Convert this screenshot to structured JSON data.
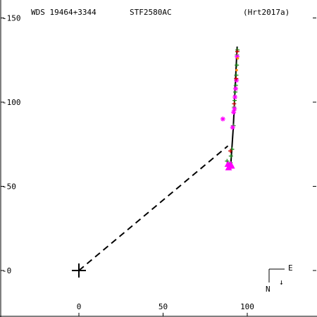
{
  "header": {
    "identifier": "WDS 19464+3344",
    "designation": "STF2580AC",
    "reference": "(Hrt2017a)"
  },
  "compass": {
    "east_label": "E",
    "north_label": "N",
    "north_arrow": "↓"
  },
  "colors": {
    "axes": "#000000",
    "orbit": "#000000",
    "measures_green": "#1a8a1a",
    "measures_magenta": "#ff00ff",
    "measures_red": "#cc0000",
    "measures_orange": "#ff8800"
  },
  "chart_data": {
    "type": "scatter",
    "title": "",
    "xlabel": "",
    "ylabel": "",
    "xlim": [
      -46,
      142
    ],
    "ylim": [
      -27,
      160
    ],
    "x_ticks": [
      0,
      50,
      100
    ],
    "x_tick_labels": [
      "0",
      "50",
      "100"
    ],
    "y_ticks": [
      0,
      50,
      100,
      150
    ],
    "y_tick_labels": [
      "0",
      "50",
      "100",
      "150"
    ],
    "grid": false,
    "origin_marker": [
      0,
      0
    ],
    "projection_line": [
      [
        0,
        0
      ],
      [
        88.5,
        74
      ]
    ],
    "trend_line": [
      [
        90,
        60
      ],
      [
        90.7,
        70
      ],
      [
        91.7,
        85
      ],
      [
        92.4,
        100
      ],
      [
        93.1,
        115
      ],
      [
        94,
        133
      ]
    ],
    "series": [
      {
        "marker": "plus",
        "color": "green",
        "points": [
          [
            88,
            65
          ],
          [
            90,
            64
          ],
          [
            90.3,
            68
          ],
          [
            91,
            72
          ],
          [
            91.8,
            86
          ],
          [
            92.2,
            97
          ],
          [
            92.5,
            101
          ],
          [
            92.9,
            106
          ],
          [
            93.2,
            110
          ],
          [
            93.5,
            116
          ],
          [
            93.8,
            122
          ],
          [
            93.9,
            128
          ],
          [
            94.2,
            131
          ]
        ]
      },
      {
        "marker": "asterisk",
        "color": "magenta",
        "points": [
          [
            85.5,
            90
          ],
          [
            91.3,
            85
          ],
          [
            91.9,
            94
          ],
          [
            92.4,
            96
          ],
          [
            92.7,
            103
          ],
          [
            93.1,
            108
          ],
          [
            93.6,
            113
          ],
          [
            94,
            127
          ]
        ]
      },
      {
        "marker": "triangle",
        "color": "magenta",
        "points": [
          [
            88.5,
            63
          ],
          [
            89.5,
            62
          ],
          [
            90.2,
            63
          ],
          [
            88.9,
            61
          ],
          [
            90.7,
            62
          ]
        ]
      },
      {
        "marker": "plus",
        "color": "red",
        "points": [
          [
            90,
            71
          ],
          [
            92.2,
            99
          ],
          [
            93.4,
            114
          ],
          [
            94.1,
            130
          ]
        ]
      },
      {
        "marker": "dot",
        "color": "orange",
        "points": [
          [
            93.7,
            119
          ],
          [
            94.3,
            126
          ]
        ]
      }
    ]
  }
}
